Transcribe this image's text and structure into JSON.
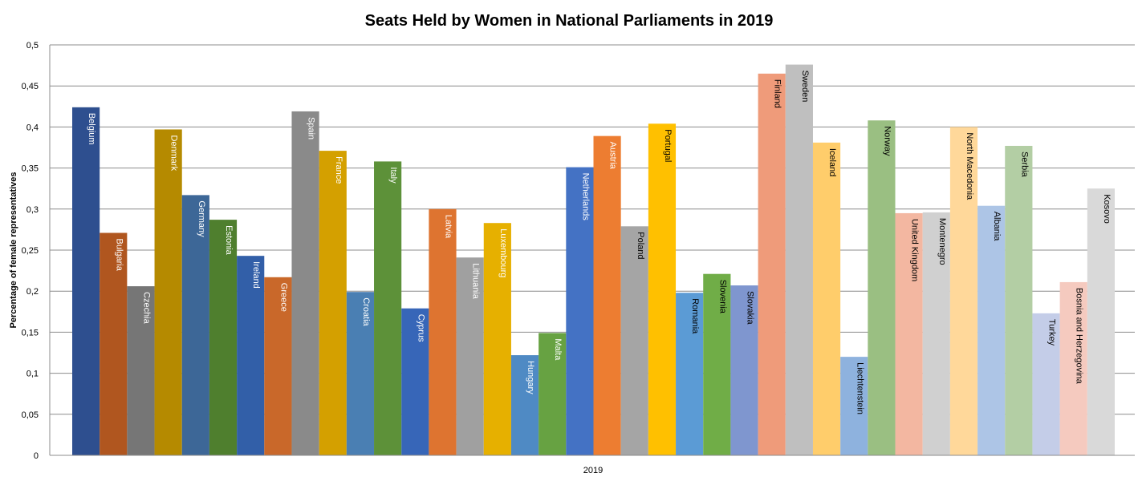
{
  "chart_data": {
    "type": "bar",
    "title": "Seats Held by Women in National Parliaments in 2019",
    "ylabel": "Percentage of female representatives",
    "xlabel": "",
    "x_category": "2019",
    "ylim": [
      0,
      0.5
    ],
    "yticks": [
      "0",
      "0,05",
      "0,1",
      "0,15",
      "0,2",
      "0,25",
      "0,3",
      "0,35",
      "0,4",
      "0,45",
      "0,5"
    ],
    "grid": true,
    "legend": "none",
    "series": [
      {
        "name": "Belgium",
        "value": 0.424,
        "color": "#2e4f8f",
        "label_color": "#ffffff"
      },
      {
        "name": "Bulgaria",
        "value": 0.271,
        "color": "#b0561f",
        "label_color": "#ffffff"
      },
      {
        "name": "Czechia",
        "value": 0.206,
        "color": "#767676",
        "label_color": "#ffffff"
      },
      {
        "name": "Denmark",
        "value": 0.397,
        "color": "#b58a00",
        "label_color": "#ffffff"
      },
      {
        "name": "Germany",
        "value": 0.317,
        "color": "#3d6797",
        "label_color": "#ffffff"
      },
      {
        "name": "Estonia",
        "value": 0.287,
        "color": "#4f7f2e",
        "label_color": "#ffffff"
      },
      {
        "name": "Ireland",
        "value": 0.243,
        "color": "#325fa8",
        "label_color": "#ffffff"
      },
      {
        "name": "Greece",
        "value": 0.217,
        "color": "#c9682a",
        "label_color": "#ffffff"
      },
      {
        "name": "Spain",
        "value": 0.419,
        "color": "#8a8a8a",
        "label_color": "#ffffff"
      },
      {
        "name": "France",
        "value": 0.371,
        "color": "#d4a000",
        "label_color": "#ffffff"
      },
      {
        "name": "Croatia",
        "value": 0.199,
        "color": "#4a7fb3",
        "label_color": "#ffffff"
      },
      {
        "name": "Italy",
        "value": 0.358,
        "color": "#5d9139",
        "label_color": "#ffffff"
      },
      {
        "name": "Cyprus",
        "value": 0.179,
        "color": "#3766b8",
        "label_color": "#ffffff"
      },
      {
        "name": "Latvia",
        "value": 0.3,
        "color": "#de7430",
        "label_color": "#ffffff"
      },
      {
        "name": "Lithuania",
        "value": 0.241,
        "color": "#a0a0a0",
        "label_color": "#ffffff"
      },
      {
        "name": "Luxembourg",
        "value": 0.283,
        "color": "#e6b000",
        "label_color": "#ffffff"
      },
      {
        "name": "Hungary",
        "value": 0.122,
        "color": "#4f8ac4",
        "label_color": "#ffffff"
      },
      {
        "name": "Malta",
        "value": 0.149,
        "color": "#67a242",
        "label_color": "#ffffff"
      },
      {
        "name": "Netherlands",
        "value": 0.351,
        "color": "#4472c4",
        "label_color": "#ffffff"
      },
      {
        "name": "Austria",
        "value": 0.389,
        "color": "#ed7d31",
        "label_color": "#ffffff"
      },
      {
        "name": "Poland",
        "value": 0.279,
        "color": "#a5a5a5",
        "label_color": "#000000"
      },
      {
        "name": "Portugal",
        "value": 0.404,
        "color": "#ffc000",
        "label_color": "#000000"
      },
      {
        "name": "Romania",
        "value": 0.198,
        "color": "#5b9bd5",
        "label_color": "#000000"
      },
      {
        "name": "Slovenia",
        "value": 0.221,
        "color": "#70ad47",
        "label_color": "#000000"
      },
      {
        "name": "Slovakia",
        "value": 0.207,
        "color": "#7f96cf",
        "label_color": "#000000"
      },
      {
        "name": "Finland",
        "value": 0.465,
        "color": "#ef9b7a",
        "label_color": "#000000"
      },
      {
        "name": "Sweden",
        "value": 0.476,
        "color": "#bfbfbf",
        "label_color": "#000000"
      },
      {
        "name": "Iceland",
        "value": 0.381,
        "color": "#ffcd6b",
        "label_color": "#000000"
      },
      {
        "name": "Liechtenstein",
        "value": 0.12,
        "color": "#8eb2de",
        "label_color": "#000000"
      },
      {
        "name": "Norway",
        "value": 0.408,
        "color": "#9abf82",
        "label_color": "#000000"
      },
      {
        "name": "United Kingdom",
        "value": 0.295,
        "color": "#f3b7a1",
        "label_color": "#000000"
      },
      {
        "name": "Montenegro",
        "value": 0.296,
        "color": "#d0d0d0",
        "label_color": "#000000"
      },
      {
        "name": "North Macedonia",
        "value": 0.4,
        "color": "#ffd89a",
        "label_color": "#000000"
      },
      {
        "name": "Albania",
        "value": 0.304,
        "color": "#adc5e6",
        "label_color": "#000000"
      },
      {
        "name": "Serbia",
        "value": 0.377,
        "color": "#b3cea4",
        "label_color": "#000000"
      },
      {
        "name": "Turkey",
        "value": 0.173,
        "color": "#c4cde8",
        "label_color": "#000000"
      },
      {
        "name": "Bosnia and Herzegovina",
        "value": 0.211,
        "color": "#f5cabf",
        "label_color": "#000000"
      },
      {
        "name": "Kosovo",
        "value": 0.325,
        "color": "#d9d9d9",
        "label_color": "#000000"
      }
    ]
  }
}
